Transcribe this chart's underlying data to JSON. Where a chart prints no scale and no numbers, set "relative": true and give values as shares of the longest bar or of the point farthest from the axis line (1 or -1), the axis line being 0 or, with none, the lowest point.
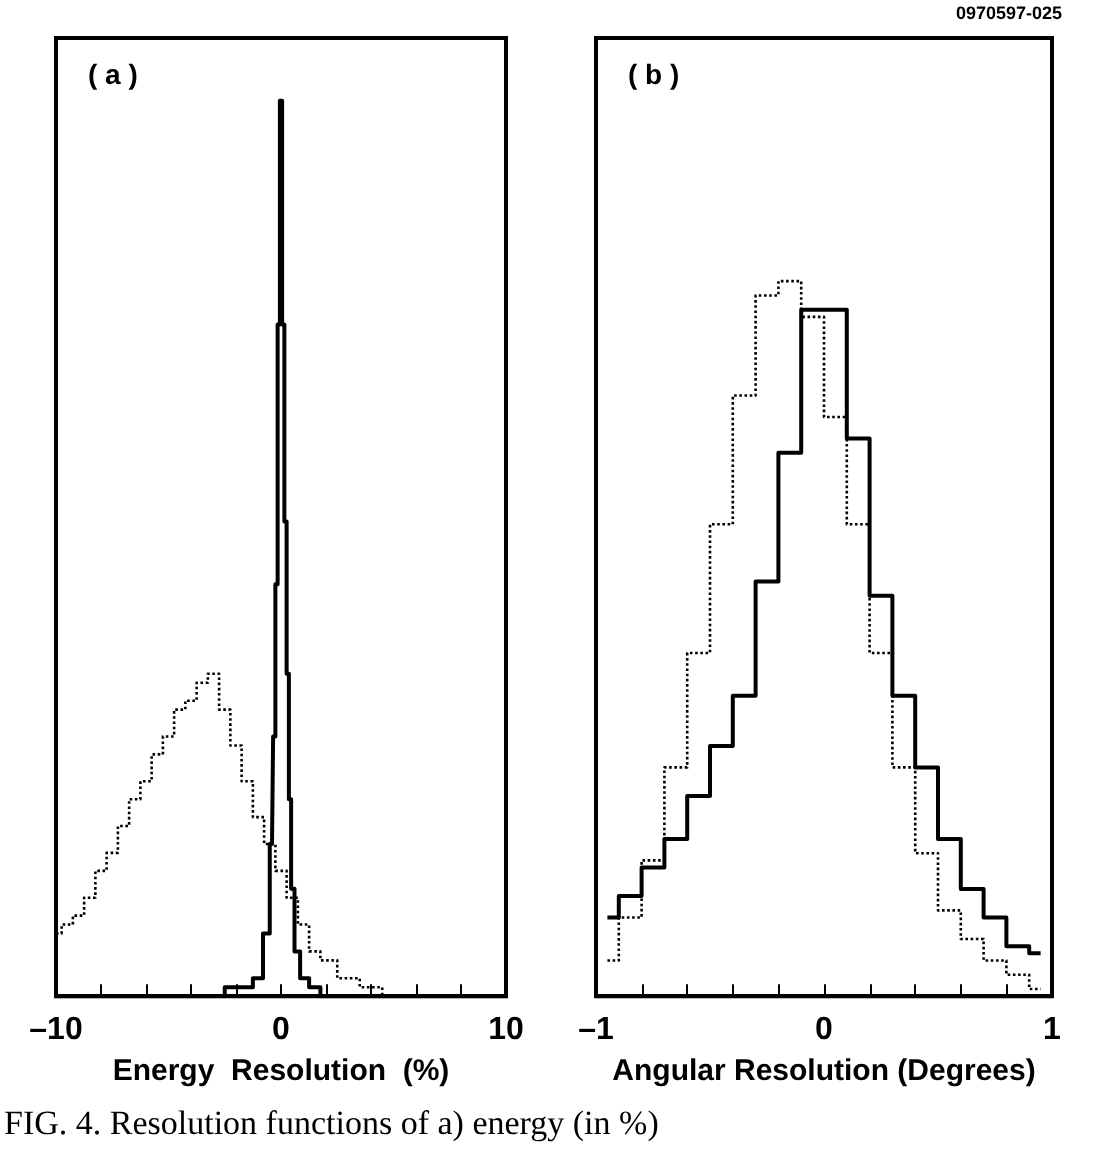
{
  "chart_data": [
    {
      "type": "step",
      "relative": true,
      "xlabel": "Energy  Resolution  (%)",
      "xlim": [
        -10,
        10
      ],
      "xticks": [
        {
          "value": -10,
          "label": "–10"
        },
        {
          "value": -8,
          "label": null
        },
        {
          "value": -6,
          "label": null
        },
        {
          "value": -4,
          "label": null
        },
        {
          "value": -2,
          "label": null
        },
        0,
        {
          "value": 2,
          "label": null
        },
        {
          "value": 4,
          "label": null
        },
        {
          "value": 6,
          "label": null
        },
        {
          "value": 8,
          "label": null
        },
        10
      ],
      "annotations": [
        "( a )",
        "FIG. 4.  Resolution functions of a) energy (in %)"
      ],
      "series": [
        {
          "color": "#000000",
          "line_style": "dotted",
          "x": [
            -10,
            -9.5,
            -9,
            -8.5,
            -8,
            -7.5,
            -7,
            -6.5,
            -6,
            -5.5,
            -5,
            -4.5,
            -4,
            -3.5,
            -3,
            -2.5,
            -2,
            -1.5,
            -1,
            -0.5,
            0,
            0.5,
            1,
            1.5,
            2,
            3,
            4,
            5,
            7,
            10
          ],
          "values": [
            0.07,
            0.08,
            0.09,
            0.11,
            0.14,
            0.16,
            0.19,
            0.22,
            0.24,
            0.27,
            0.29,
            0.32,
            0.33,
            0.35,
            0.36,
            0.32,
            0.28,
            0.24,
            0.2,
            0.17,
            0.14,
            0.11,
            0.08,
            0.05,
            0.04,
            0.02,
            0.01,
            0,
            0,
            0
          ]
        },
        {
          "color": "#000000",
          "line_style": "solid",
          "x": [
            -10,
            -4,
            -3,
            -2,
            -1.5,
            -1,
            -0.6,
            -0.4,
            -0.3,
            -0.2,
            -0.1,
            0,
            0.1,
            0.2,
            0.3,
            0.4,
            0.5,
            0.7,
            1,
            1.5,
            2,
            3,
            10
          ],
          "values": [
            0,
            0,
            0,
            0.01,
            0.01,
            0.02,
            0.07,
            0.17,
            0.29,
            0.46,
            0.75,
            1,
            0.75,
            0.53,
            0.36,
            0.22,
            0.12,
            0.05,
            0.02,
            0.01,
            0,
            0,
            0
          ]
        }
      ]
    },
    {
      "type": "step",
      "relative": true,
      "xlabel": "Angular Resolution (Degrees)",
      "xlim": [
        -1,
        1
      ],
      "xticks": [
        {
          "value": -1,
          "label": "–1"
        },
        {
          "value": -0.8,
          "label": null
        },
        {
          "value": -0.6,
          "label": null
        },
        {
          "value": -0.4,
          "label": null
        },
        {
          "value": -0.2,
          "label": null
        },
        0,
        {
          "value": 0.2,
          "label": null
        },
        {
          "value": 0.4,
          "label": null
        },
        {
          "value": 0.6,
          "label": null
        },
        {
          "value": 0.8,
          "label": null
        },
        1
      ],
      "annotations": [
        "( b )",
        "0970597-025"
      ],
      "series": [
        {
          "color": "#000000",
          "line_style": "solid",
          "x": [
            -0.95,
            -0.85,
            -0.75,
            -0.65,
            -0.55,
            -0.45,
            -0.35,
            -0.25,
            -0.15,
            -0.05,
            0.05,
            0.15,
            0.25,
            0.35,
            0.45,
            0.55,
            0.65,
            0.75,
            0.85,
            0.95
          ],
          "values": [
            0.11,
            0.14,
            0.18,
            0.22,
            0.28,
            0.35,
            0.42,
            0.58,
            0.76,
            0.96,
            0.96,
            0.78,
            0.56,
            0.42,
            0.32,
            0.22,
            0.15,
            0.11,
            0.07,
            0.06
          ]
        },
        {
          "color": "#000000",
          "line_style": "dotted",
          "x": [
            -0.95,
            -0.85,
            -0.75,
            -0.65,
            -0.55,
            -0.45,
            -0.35,
            -0.25,
            -0.15,
            -0.05,
            0.05,
            0.15,
            0.25,
            0.35,
            0.45,
            0.55,
            0.65,
            0.75,
            0.85,
            0.95
          ],
          "values": [
            0.05,
            0.11,
            0.19,
            0.32,
            0.48,
            0.66,
            0.84,
            0.98,
            1,
            0.95,
            0.81,
            0.66,
            0.48,
            0.32,
            0.2,
            0.12,
            0.08,
            0.05,
            0.03,
            0.01
          ]
        }
      ]
    }
  ]
}
